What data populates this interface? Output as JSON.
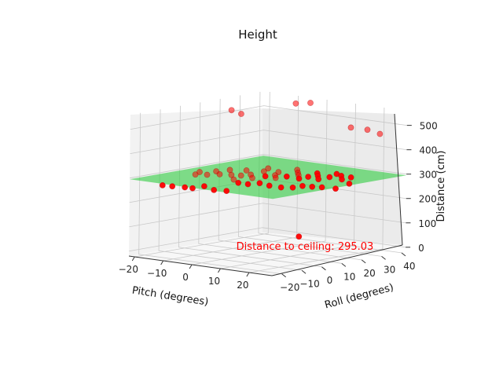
{
  "chart_data": {
    "type": "scatter",
    "title": "Height",
    "xlabel": "Pitch (degrees)",
    "ylabel": "Roll (degrees)",
    "zlabel": "Distance (cm)",
    "x_ticks": [
      "−20",
      "−10",
      "0",
      "10",
      "20"
    ],
    "y_ticks": [
      "−20",
      "−10",
      "0",
      "10",
      "20",
      "30",
      "40"
    ],
    "z_ticks": [
      "0",
      "100",
      "200",
      "300",
      "400",
      "500"
    ],
    "xlim": [
      -22,
      28
    ],
    "ylim": [
      -25,
      42
    ],
    "zlim": [
      -20,
      560
    ],
    "grid": true,
    "annotation": "Distance to ceiling: 295.03",
    "annotation_color": "#ff0000",
    "plane_color": "#2ecc40",
    "point_color": "#ff0000",
    "plane_z": 295.03,
    "points": [
      {
        "x": -14,
        "y": -20,
        "z": 276
      },
      {
        "x": -12,
        "y": -18,
        "z": 272
      },
      {
        "x": -9,
        "y": -16,
        "z": 270
      },
      {
        "x": -7,
        "y": -15,
        "z": 268
      },
      {
        "x": -5,
        "y": -12,
        "z": 275
      },
      {
        "x": -3,
        "y": -10,
        "z": 260
      },
      {
        "x": 0,
        "y": -8,
        "z": 258
      },
      {
        "x": 2,
        "y": -5,
        "z": 290
      },
      {
        "x": 4,
        "y": -3,
        "z": 285
      },
      {
        "x": 6,
        "y": 0,
        "z": 288
      },
      {
        "x": 8,
        "y": 2,
        "z": 278
      },
      {
        "x": 10,
        "y": 5,
        "z": 270
      },
      {
        "x": 12,
        "y": 8,
        "z": 268
      },
      {
        "x": 14,
        "y": 10,
        "z": 275
      },
      {
        "x": 16,
        "y": 12,
        "z": 272
      },
      {
        "x": 18,
        "y": 14,
        "z": 270
      },
      {
        "x": 20,
        "y": 18,
        "z": 262
      },
      {
        "x": 22,
        "y": 22,
        "z": 280
      },
      {
        "x": -13,
        "y": -5,
        "z": 300
      },
      {
        "x": -11,
        "y": -2,
        "z": 298
      },
      {
        "x": -8,
        "y": 0,
        "z": 302
      },
      {
        "x": -6,
        "y": 3,
        "z": 298
      },
      {
        "x": -4,
        "y": 5,
        "z": 296
      },
      {
        "x": -2,
        "y": 7,
        "z": 300
      },
      {
        "x": 1,
        "y": 10,
        "z": 294
      },
      {
        "x": 3,
        "y": 12,
        "z": 298
      },
      {
        "x": 5,
        "y": 15,
        "z": 292
      },
      {
        "x": 7,
        "y": 18,
        "z": 296
      },
      {
        "x": 9,
        "y": 20,
        "z": 290
      },
      {
        "x": 11,
        "y": 22,
        "z": 294
      },
      {
        "x": 13,
        "y": 25,
        "z": 288
      },
      {
        "x": 15,
        "y": 28,
        "z": 292
      },
      {
        "x": 17,
        "y": 30,
        "z": 286
      },
      {
        "x": -10,
        "y": 8,
        "z": 305
      },
      {
        "x": -7,
        "y": 12,
        "z": 302
      },
      {
        "x": -3,
        "y": 15,
        "z": 300
      },
      {
        "x": 0,
        "y": 18,
        "z": 298
      },
      {
        "x": 4,
        "y": 22,
        "z": 296
      },
      {
        "x": 8,
        "y": 26,
        "z": 294
      },
      {
        "x": 12,
        "y": 30,
        "z": 292
      },
      {
        "x": -15,
        "y": 0,
        "z": 300
      },
      {
        "x": -12,
        "y": 4,
        "z": 302
      },
      {
        "x": 6,
        "y": 8,
        "z": 298
      },
      {
        "x": 2,
        "y": 2,
        "z": 300
      },
      {
        "x": -1,
        "y": -3,
        "z": 296
      },
      {
        "x": 10,
        "y": 14,
        "z": 293
      },
      {
        "x": 14,
        "y": 18,
        "z": 291
      },
      {
        "x": 18,
        "y": 24,
        "z": 288
      },
      {
        "x": -5,
        "y": 20,
        "z": 302
      },
      {
        "x": 1,
        "y": 26,
        "z": 297
      },
      {
        "x": -18,
        "y": 20,
        "z": 520
      },
      {
        "x": -16,
        "y": 22,
        "z": 505
      },
      {
        "x": -6,
        "y": 35,
        "z": 545
      },
      {
        "x": -3,
        "y": 38,
        "z": 548
      },
      {
        "x": 14,
        "y": 34,
        "z": 480
      },
      {
        "x": 17,
        "y": 38,
        "z": 470
      },
      {
        "x": 20,
        "y": 40,
        "z": 455
      },
      {
        "x": 6,
        "y": 20,
        "z": 40
      }
    ]
  }
}
